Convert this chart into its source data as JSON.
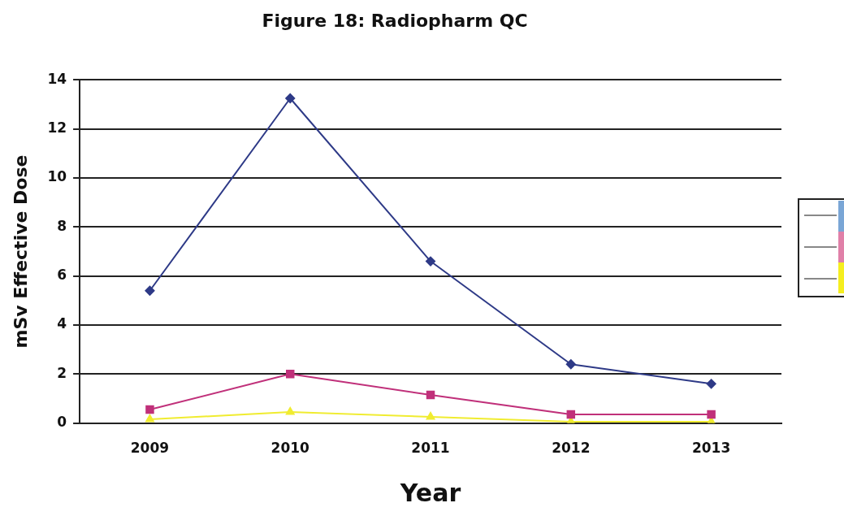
{
  "chart_data": {
    "type": "line",
    "title": "Figure 18: Radiopharm QC",
    "xlabel": "Year",
    "ylabel": "mSv Effective Dose",
    "categories": [
      "2009",
      "2010",
      "2011",
      "2012",
      "2013"
    ],
    "series": [
      {
        "color": "#2e3a87",
        "marker": "diamond",
        "values": [
          5.4,
          13.25,
          6.6,
          2.4,
          1.6
        ]
      },
      {
        "color": "#c0307a",
        "marker": "square",
        "values": [
          0.55,
          2.0,
          1.15,
          0.35,
          0.35
        ]
      },
      {
        "color": "#f0ec30",
        "marker": "triangle",
        "values": [
          0.15,
          0.45,
          0.25,
          0.05,
          0.05
        ]
      }
    ],
    "ylim": [
      0,
      14
    ],
    "yticks": [
      0,
      2,
      4,
      6,
      8,
      10,
      12,
      14
    ],
    "grid": "y",
    "line_style": "solid"
  }
}
